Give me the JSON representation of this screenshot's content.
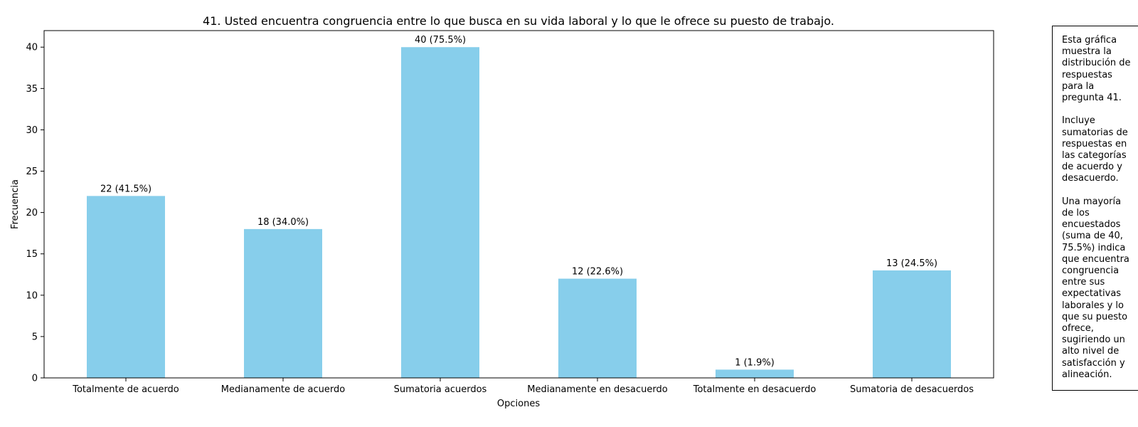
{
  "chart_data": {
    "type": "bar",
    "title": "41. Usted encuentra congruencia entre lo que busca en su vida laboral y lo que le ofrece su puesto de trabajo.",
    "xlabel": "Opciones",
    "ylabel": "Frecuencia",
    "categories": [
      "Totalmente de acuerdo",
      "Medianamente de acuerdo",
      "Sumatoria acuerdos",
      "Medianamente en desacuerdo",
      "Totalmente en desacuerdo",
      "Sumatoria de desacuerdos"
    ],
    "values": [
      22,
      18,
      40,
      12,
      1,
      13
    ],
    "value_labels": [
      "22 (41.5%)",
      "18 (34.0%)",
      "40 (75.5%)",
      "12 (22.6%)",
      "1 (1.9%)",
      "13 (24.5%)"
    ],
    "ylim": [
      0,
      42
    ],
    "yticks": [
      0,
      5,
      10,
      15,
      20,
      25,
      30,
      35,
      40
    ],
    "bar_color": "#87CEEB",
    "grid": false,
    "legend": "none"
  },
  "note": {
    "text": "Esta gráfica\nmuestra la\ndistribución de\nrespuestas\npara la\npregunta 41.\n\nIncluye\nsumatorias de\nrespuestas en\nlas categorías\nde acuerdo y\ndesacuerdo.\n\nUna mayoría\nde los\nencuestados\n(suma de 40,\n75.5%) indica\nque encuentra\ncongruencia\nentre sus\nexpectativas\nlaborales y lo\nque su puesto\nofrece,\nsugiriendo un\nalto nivel de\nsatisfacción y\nalineación."
  }
}
